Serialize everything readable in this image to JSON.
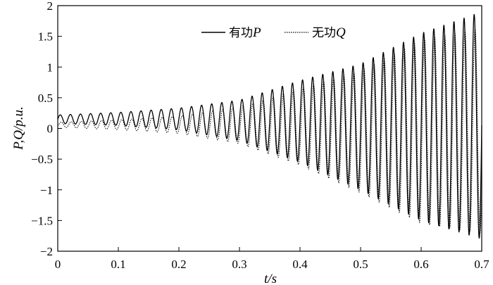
{
  "chart_data": {
    "type": "line",
    "xlabel": "t/s",
    "ylabel": "P,Q/p.u.",
    "xlim": [
      0,
      0.7
    ],
    "ylim": [
      -2,
      2
    ],
    "x_ticks": [
      0,
      0.1,
      0.2,
      0.3,
      0.4,
      0.5,
      0.6,
      0.7
    ],
    "x_tick_labels": [
      "0",
      "0.1",
      "0.2",
      "0.3",
      "0.4",
      "0.5",
      "0.6",
      "0.7"
    ],
    "y_ticks": [
      -2,
      -1.5,
      -1,
      -0.5,
      0,
      0.5,
      1,
      1.5,
      2
    ],
    "y_tick_labels": [
      "−2",
      "−1.5",
      "−1",
      "−0.5",
      "0",
      "0.5",
      "1",
      "1.5",
      "2"
    ],
    "grid": false,
    "legend_position": "top-center",
    "frequency_hz": 60,
    "series": [
      {
        "name": "有功P",
        "label_prefix": "有功",
        "label_symbol": "P",
        "style": "solid",
        "color": "#000000",
        "envelope": {
          "t": [
            0,
            0.1,
            0.2,
            0.3,
            0.4,
            0.5,
            0.6,
            0.7
          ],
          "max": [
            0.22,
            0.26,
            0.33,
            0.46,
            0.78,
            1.05,
            1.55,
            1.9
          ],
          "min": [
            0.08,
            0.05,
            -0.02,
            -0.2,
            -0.55,
            -1.0,
            -1.5,
            -1.8
          ]
        }
      },
      {
        "name": "无功Q",
        "label_prefix": "无功",
        "label_symbol": "Q",
        "style": "dotted",
        "color": "#000000",
        "envelope": {
          "t": [
            0,
            0.1,
            0.2,
            0.3,
            0.4,
            0.5,
            0.6,
            0.7
          ],
          "max": [
            0.1,
            0.14,
            0.2,
            0.35,
            0.65,
            0.95,
            1.45,
            1.65
          ],
          "min": [
            0.02,
            -0.02,
            -0.08,
            -0.25,
            -0.6,
            -1.05,
            -1.55,
            -1.7
          ]
        }
      }
    ]
  }
}
